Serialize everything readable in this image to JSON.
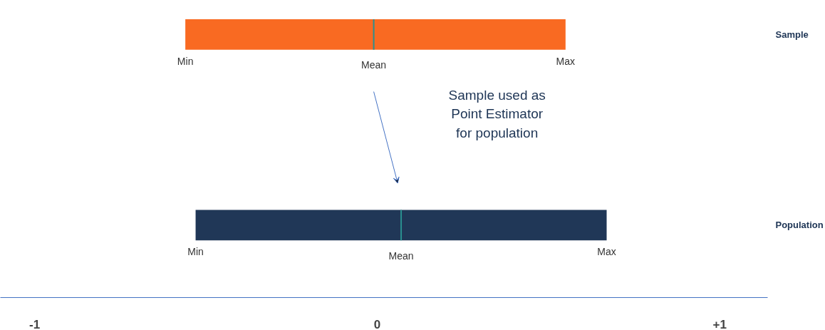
{
  "chart_data": {
    "type": "box",
    "orientation": "horizontal",
    "categories": [
      "Sample",
      "Population"
    ],
    "boxes": [
      {
        "low": -0.56,
        "q1": -0.56,
        "median": -0.01,
        "q3": 0.55,
        "high": 0.55
      },
      {
        "low": -0.53,
        "q1": -0.53,
        "median": 0.07,
        "q3": 0.67,
        "high": 0.67
      }
    ],
    "colors": [
      "#f96a22",
      "#203757"
    ],
    "xlim": [
      -1.1,
      1.14
    ],
    "xticks": [
      -1,
      0,
      {
        "value": 1,
        "label": "+1"
      }
    ],
    "annotations": [
      {
        "text": "Min",
        "x": -0.56,
        "y": "Sample"
      },
      {
        "text": "Mean",
        "x": -0.01,
        "y": "Sample"
      },
      {
        "text": "Max",
        "x": 0.55,
        "y": "Sample"
      },
      {
        "text": "Min",
        "x": -0.53,
        "y": "Population"
      },
      {
        "text": "Mean",
        "x": 0.07,
        "y": "Population"
      },
      {
        "text": "Max",
        "x": 0.67,
        "y": "Population"
      },
      "Sample used as\nPoint Estimator\nfor population"
    ]
  }
}
